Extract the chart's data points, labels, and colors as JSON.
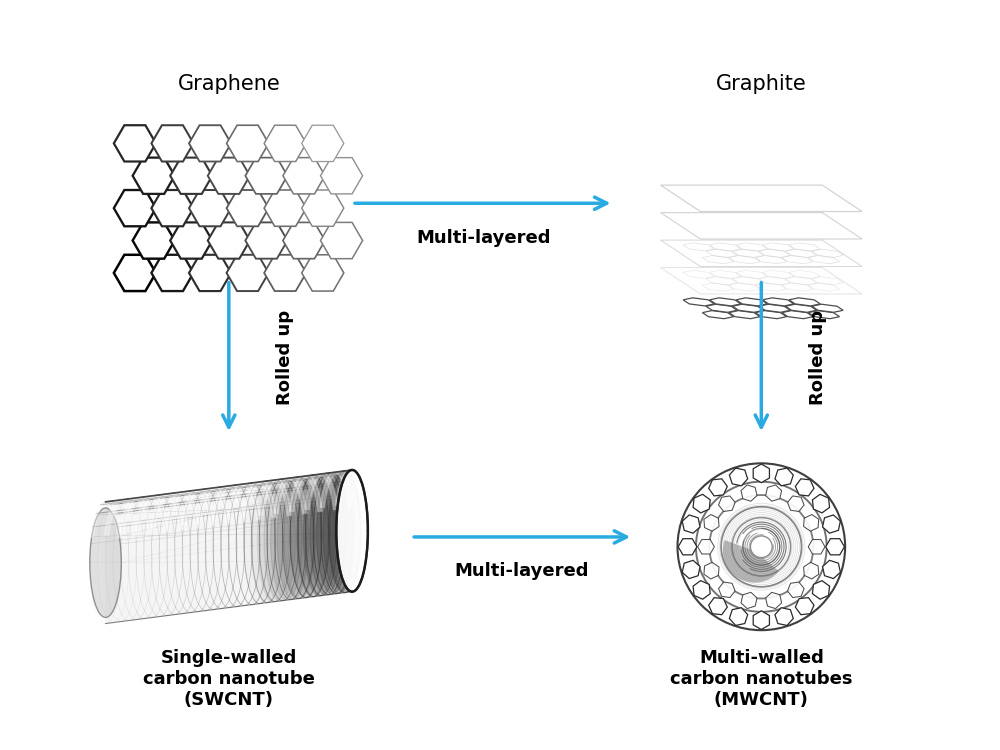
{
  "graphene_label": "Graphene",
  "graphite_label": "Graphite",
  "swcnt_label": "Single-walled\ncarbon nanotube\n(SWCNT)",
  "mwcnt_label": "Multi-walled\ncarbon nanotubes\n(MWCNT)",
  "multilayered_top": "Multi-layered",
  "multilayered_bottom": "Multi-layered",
  "rolled_up_left": "Rolled up",
  "rolled_up_right": "Rolled up",
  "arrow_color": "#29ABE2",
  "background_color": "#ffffff",
  "label_fontsize": 15,
  "sublabel_fontsize": 13,
  "arrow_fontsize": 13
}
